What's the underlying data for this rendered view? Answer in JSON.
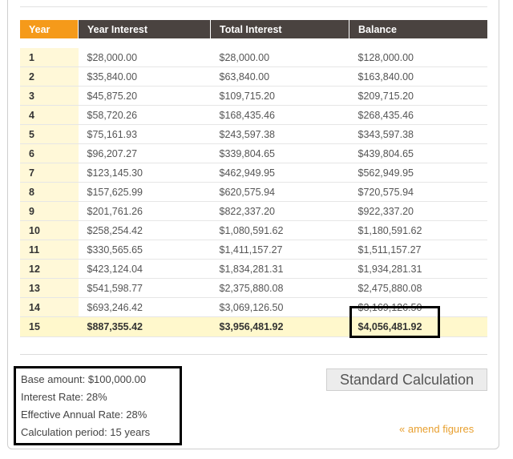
{
  "table": {
    "headers": [
      "Year",
      "Year Interest",
      "Total Interest",
      "Balance"
    ],
    "rows": [
      [
        "1",
        "$28,000.00",
        "$28,000.00",
        "$128,000.00"
      ],
      [
        "2",
        "$35,840.00",
        "$63,840.00",
        "$163,840.00"
      ],
      [
        "3",
        "$45,875.20",
        "$109,715.20",
        "$209,715.20"
      ],
      [
        "4",
        "$58,720.26",
        "$168,435.46",
        "$268,435.46"
      ],
      [
        "5",
        "$75,161.93",
        "$243,597.38",
        "$343,597.38"
      ],
      [
        "6",
        "$96,207.27",
        "$339,804.65",
        "$439,804.65"
      ],
      [
        "7",
        "$123,145.30",
        "$462,949.95",
        "$562,949.95"
      ],
      [
        "8",
        "$157,625.99",
        "$620,575.94",
        "$720,575.94"
      ],
      [
        "9",
        "$201,761.26",
        "$822,337.20",
        "$922,337.20"
      ],
      [
        "10",
        "$258,254.42",
        "$1,080,591.62",
        "$1,180,591.62"
      ],
      [
        "11",
        "$330,565.65",
        "$1,411,157.27",
        "$1,511,157.27"
      ],
      [
        "12",
        "$423,124.04",
        "$1,834,281.31",
        "$1,934,281.31"
      ],
      [
        "13",
        "$541,598.77",
        "$2,375,880.08",
        "$2,475,880.08"
      ],
      [
        "14",
        "$693,246.42",
        "$3,069,126.50",
        "$3,169,126.50"
      ]
    ],
    "final_row": [
      "15",
      "$887,355.42",
      "$3,956,481.92",
      "$4,056,481.92"
    ]
  },
  "summary": {
    "base_amount": "Base amount: $100,000.00",
    "interest_rate": "Interest Rate: 28%",
    "effective_rate": "Effective Annual Rate: 28%",
    "period": "Calculation period: 15 years"
  },
  "actions": {
    "standard_calculation": "Standard Calculation",
    "amend_figures": "« amend figures"
  },
  "colors": {
    "accent_orange": "#f59a1a",
    "header_dark": "#4a4340",
    "year_cell_bg": "#fff8d8",
    "link_orange": "#e8a030"
  }
}
